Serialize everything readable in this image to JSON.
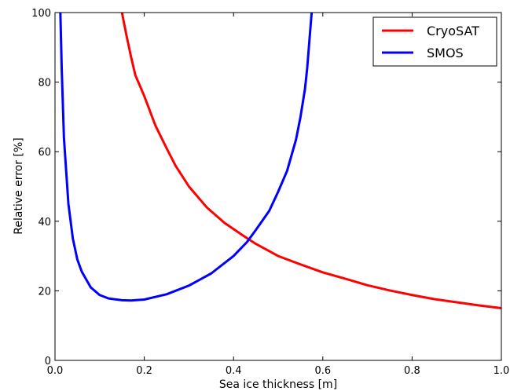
{
  "chart_data": {
    "type": "line",
    "xlabel": "Sea ice thickness [m]",
    "ylabel": "Relative error [%]",
    "xlim": [
      0.0,
      1.0
    ],
    "ylim": [
      0,
      100
    ],
    "x_ticks": [
      "0.0",
      "0.2",
      "0.4",
      "0.6",
      "0.8",
      "1.0"
    ],
    "y_ticks": [
      "0",
      "20",
      "40",
      "60",
      "80",
      "100"
    ],
    "grid": false,
    "legend_position": "top-right",
    "series": [
      {
        "name": "CryoSAT",
        "color": "#ff0000",
        "x": [
          0.15,
          0.16,
          0.17,
          0.18,
          0.2,
          0.225,
          0.25,
          0.27,
          0.3,
          0.34,
          0.38,
          0.42,
          0.45,
          0.5,
          0.55,
          0.6,
          0.65,
          0.7,
          0.75,
          0.8,
          0.85,
          0.9,
          0.95,
          1.0
        ],
        "y": [
          100,
          93.5,
          87.5,
          82,
          76,
          67.5,
          61,
          56,
          50,
          44,
          39.5,
          36,
          33.5,
          30,
          27.6,
          25.3,
          23.5,
          21.6,
          20.1,
          18.8,
          17.6,
          16.7,
          15.8,
          15
        ]
      },
      {
        "name": "SMOS",
        "color": "#0000ff",
        "x": [
          0.012,
          0.015,
          0.02,
          0.03,
          0.04,
          0.05,
          0.06,
          0.08,
          0.1,
          0.12,
          0.15,
          0.17,
          0.2,
          0.25,
          0.3,
          0.35,
          0.4,
          0.43,
          0.45,
          0.48,
          0.5,
          0.52,
          0.54,
          0.55,
          0.56,
          0.565,
          0.57,
          0.575
        ],
        "y": [
          100,
          84,
          64,
          45,
          35,
          29,
          25.5,
          21,
          18.8,
          17.8,
          17.3,
          17.2,
          17.5,
          19,
          21.5,
          25,
          30,
          34,
          37.5,
          43,
          48.5,
          54.5,
          63.5,
          70,
          78,
          84,
          92,
          100
        ]
      }
    ]
  }
}
